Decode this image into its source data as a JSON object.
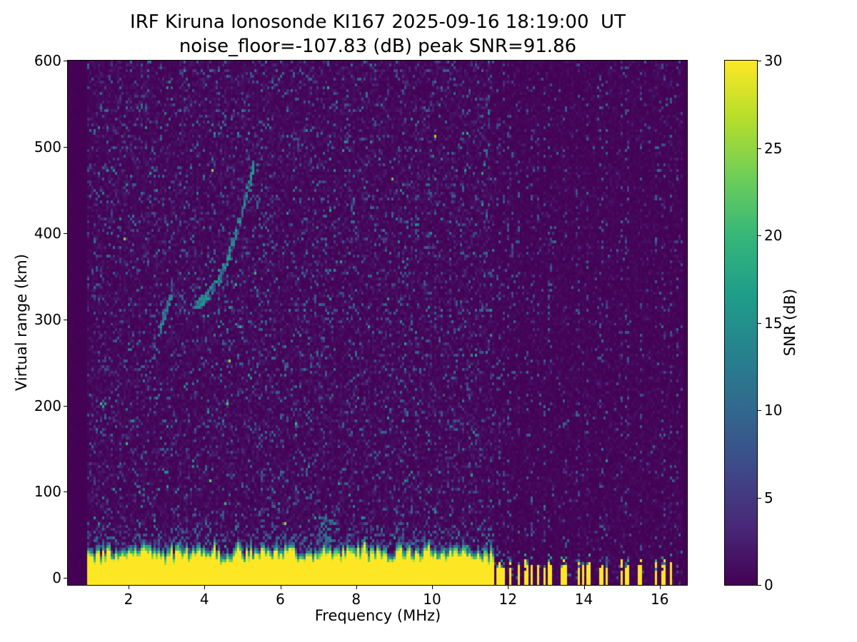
{
  "colors": {
    "background": "#ffffff",
    "text": "#000000"
  },
  "chart_data": {
    "type": "heatmap",
    "title": "IRF Kiruna Ionosonde KI167 2025-09-16 18:19:00  UT",
    "subtitle": "noise_floor=-107.83 (dB) peak SNR=91.86",
    "xlabel": "Frequency (MHz)",
    "ylabel": "Virtual range (km)",
    "x_range": [
      0.4,
      16.72
    ],
    "y_range": [
      -8,
      600
    ],
    "x_ticks": [
      2,
      4,
      6,
      8,
      10,
      12,
      14,
      16
    ],
    "y_ticks": [
      0,
      100,
      200,
      300,
      400,
      500,
      600
    ],
    "grid": false,
    "noise_floor_db": -107.83,
    "peak_snr_db": 91.86,
    "colorbar": {
      "label": "SNR (dB)",
      "ticks": [
        0,
        5,
        10,
        15,
        20,
        25,
        30
      ],
      "range": [
        0,
        30
      ],
      "colormap": "viridis",
      "colors": [
        "#440154",
        "#482878",
        "#3e4989",
        "#31688e",
        "#26828e",
        "#1f9e89",
        "#35b779",
        "#6ece58",
        "#b5de2b",
        "#fde725"
      ]
    },
    "features": {
      "data_freq_span_mhz": [
        0.9,
        16.6
      ],
      "ground_echo_band": {
        "freq_continuous_until_mhz": 11.65,
        "top_km_min": 16,
        "top_km_max": 32
      },
      "f_layer_trace": {
        "branch1": {
          "f_mhz": [
            2.82,
            3.15
          ],
          "range_km": [
            285,
            335
          ]
        },
        "branch2": {
          "f_mhz": [
            3.75,
            5.3
          ],
          "range_km": [
            318,
            480
          ]
        }
      },
      "rfi_lines_mhz": [
        11.75,
        11.9,
        12.0,
        12.1,
        12.3,
        12.5,
        12.65,
        12.8,
        12.95,
        13.1,
        13.5,
        13.85,
        14.1,
        14.45,
        14.6,
        15.0,
        15.15,
        15.5,
        15.9,
        16.1,
        16.3,
        16.45
      ],
      "strong_rfi_line_mhz": 12.0
    }
  }
}
